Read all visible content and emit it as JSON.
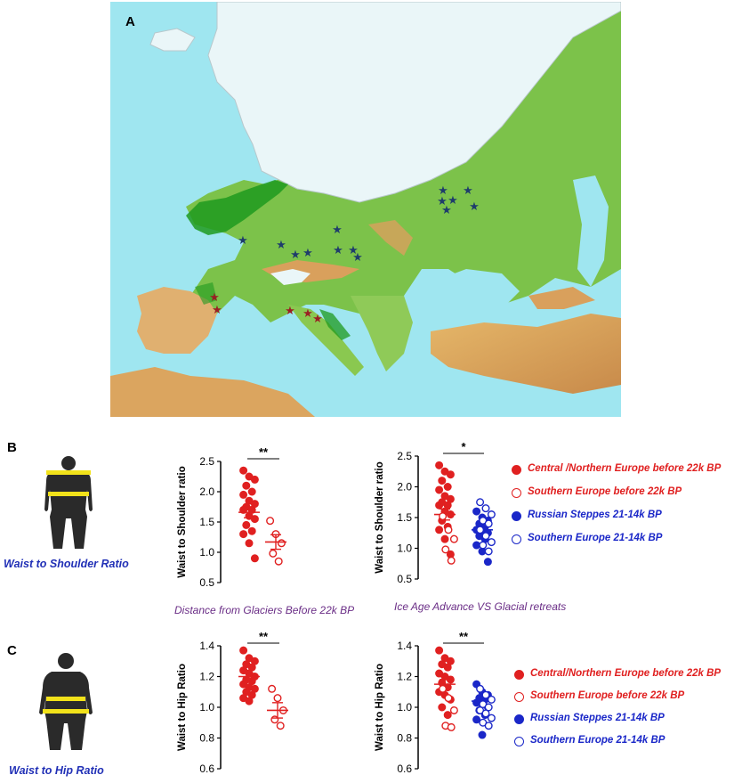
{
  "panels": {
    "a_label": "A",
    "b_label": "B",
    "c_label": "C"
  },
  "colors": {
    "central_northern": "#e02020",
    "russian": "#1a27c8",
    "sea": "#9fe6f0",
    "ice": "#eaf6f8",
    "lowland": "#6fbf3a",
    "refugium": "#1f9a1f",
    "mountain": "#d9a05c",
    "star_blue": "#1f3d6b",
    "star_red": "#9a1f24",
    "caption_blue": "#2130b6",
    "xcap_purple": "#6a2d86",
    "silhouette_band": "#f2e21a"
  },
  "icons": {
    "shoulder_figure": "body-silhouette-shoulder-waist-icon",
    "hip_figure": "body-silhouette-waist-hip-icon"
  },
  "captions": {
    "b": "Waist to Shoulder Ratio",
    "c": "Waist to Hip Ratio"
  },
  "legend_b": [
    {
      "label": "Central /Northern Europe  before 22k BP",
      "color": "#e02020",
      "filled": true
    },
    {
      "label": "Southern Europe  before 22k BP",
      "color": "#e02020",
      "filled": false
    },
    {
      "label": "Russian Steppes 21-14k BP",
      "color": "#1a27c8",
      "filled": true
    },
    {
      "label": "Southern Europe  21-14k BP",
      "color": "#1a27c8",
      "filled": false
    }
  ],
  "legend_c": [
    {
      "label": "Central/Northern  Europe before 22k BP",
      "color": "#e02020",
      "filled": true
    },
    {
      "label": "Southern Europe  before 22k BP",
      "color": "#e02020",
      "filled": false
    },
    {
      "label": "Russian Steppes 21-14k BP",
      "color": "#1a27c8",
      "filled": true
    },
    {
      "label": "Southern Europe  21-14k BP",
      "color": "#1a27c8",
      "filled": false
    }
  ],
  "chart_data": [
    {
      "id": "b1",
      "type": "scatter",
      "ylabel": "Waist to Shoulder ratio",
      "xlabel": "Distance from Glaciers  Before 22k BP",
      "ylim": [
        0.5,
        2.5
      ],
      "yticks": [
        "0.5",
        "1.0",
        "1.5",
        "2.0",
        "2.5"
      ],
      "significance": "**",
      "series": [
        {
          "color": "#e02020",
          "filled": true,
          "mean": 1.66,
          "sem": 0.09,
          "values": [
            2.35,
            2.25,
            2.2,
            2.1,
            2.0,
            1.95,
            1.85,
            1.8,
            1.75,
            1.7,
            1.7,
            1.6,
            1.55,
            1.45,
            1.35,
            1.3,
            1.15,
            0.9
          ]
        },
        {
          "color": "#e02020",
          "filled": false,
          "mean": 1.17,
          "sem": 0.12,
          "values": [
            1.52,
            1.3,
            1.15,
            0.98,
            0.85
          ]
        }
      ]
    },
    {
      "id": "b2",
      "type": "scatter",
      "ylabel": "Waist to Shoulder ratio",
      "xlabel": "Ice Age Advance VS Glacial retreats",
      "ylim": [
        0.5,
        2.5
      ],
      "yticks": [
        "0.5",
        "1.0",
        "1.5",
        "2.0",
        "2.5"
      ],
      "significance": "*",
      "series": [
        {
          "color": "#e02020",
          "filled": true,
          "mean": 1.55,
          "sem": 0.09,
          "values": [
            2.35,
            2.25,
            2.2,
            2.1,
            2.0,
            1.95,
            1.85,
            1.8,
            1.75,
            1.7,
            1.7,
            1.6,
            1.55,
            1.45,
            1.35,
            1.3,
            1.15,
            0.9
          ]
        },
        {
          "color": "#e02020",
          "filled": false,
          "mean": 1.55,
          "sem": 0.09,
          "values": [
            1.52,
            1.3,
            1.15,
            0.98,
            0.8
          ]
        },
        {
          "color": "#1a27c8",
          "filled": true,
          "mean": 1.3,
          "sem": 0.05,
          "values": [
            1.6,
            1.5,
            1.45,
            1.4,
            1.35,
            1.3,
            1.3,
            1.25,
            1.2,
            1.15,
            1.05,
            0.95,
            0.78
          ]
        },
        {
          "color": "#1a27c8",
          "filled": false,
          "mean": 1.3,
          "sem": 0.05,
          "values": [
            1.75,
            1.65,
            1.55,
            1.45,
            1.4,
            1.3,
            1.2,
            1.1,
            1.05,
            0.95
          ]
        }
      ]
    },
    {
      "id": "c1",
      "type": "scatter",
      "ylabel": "Waist to Hip Ratio",
      "xlabel": "",
      "ylim": [
        0.6,
        1.4
      ],
      "yticks": [
        "0.6",
        "0.8",
        "1.0",
        "1.2",
        "1.4"
      ],
      "significance": "**",
      "series": [
        {
          "color": "#e02020",
          "filled": true,
          "mean": 1.2,
          "sem": 0.02,
          "values": [
            1.37,
            1.32,
            1.3,
            1.28,
            1.26,
            1.24,
            1.22,
            1.2,
            1.18,
            1.17,
            1.15,
            1.13,
            1.12,
            1.1,
            1.08,
            1.06,
            1.04
          ]
        },
        {
          "color": "#e02020",
          "filled": false,
          "mean": 0.98,
          "sem": 0.05,
          "values": [
            1.12,
            1.06,
            0.98,
            0.92,
            0.88
          ]
        }
      ]
    },
    {
      "id": "c2",
      "type": "scatter",
      "ylabel": "Waist to Hip Ratio",
      "xlabel": "",
      "ylim": [
        0.6,
        1.4
      ],
      "yticks": [
        "0.6",
        "0.8",
        "1.0",
        "1.2",
        "1.4"
      ],
      "significance": "**",
      "series": [
        {
          "color": "#e02020",
          "filled": true,
          "mean": 1.15,
          "sem": 0.03,
          "values": [
            1.37,
            1.32,
            1.3,
            1.28,
            1.26,
            1.22,
            1.2,
            1.18,
            1.16,
            1.13,
            1.1,
            1.08,
            1.05,
            1.0,
            0.95
          ]
        },
        {
          "color": "#e02020",
          "filled": false,
          "mean": 1.15,
          "sem": 0.03,
          "values": [
            1.12,
            1.06,
            0.98,
            0.88,
            0.87
          ]
        },
        {
          "color": "#1a27c8",
          "filled": true,
          "mean": 1.04,
          "sem": 0.02,
          "values": [
            1.15,
            1.1,
            1.08,
            1.06,
            1.05,
            1.03,
            1.02,
            1.0,
            0.98,
            0.95,
            0.92,
            0.82
          ]
        },
        {
          "color": "#1a27c8",
          "filled": false,
          "mean": 1.04,
          "sem": 0.02,
          "values": [
            1.12,
            1.08,
            1.05,
            1.02,
            1.0,
            0.98,
            0.96,
            0.93,
            0.9,
            0.88
          ]
        }
      ]
    }
  ]
}
